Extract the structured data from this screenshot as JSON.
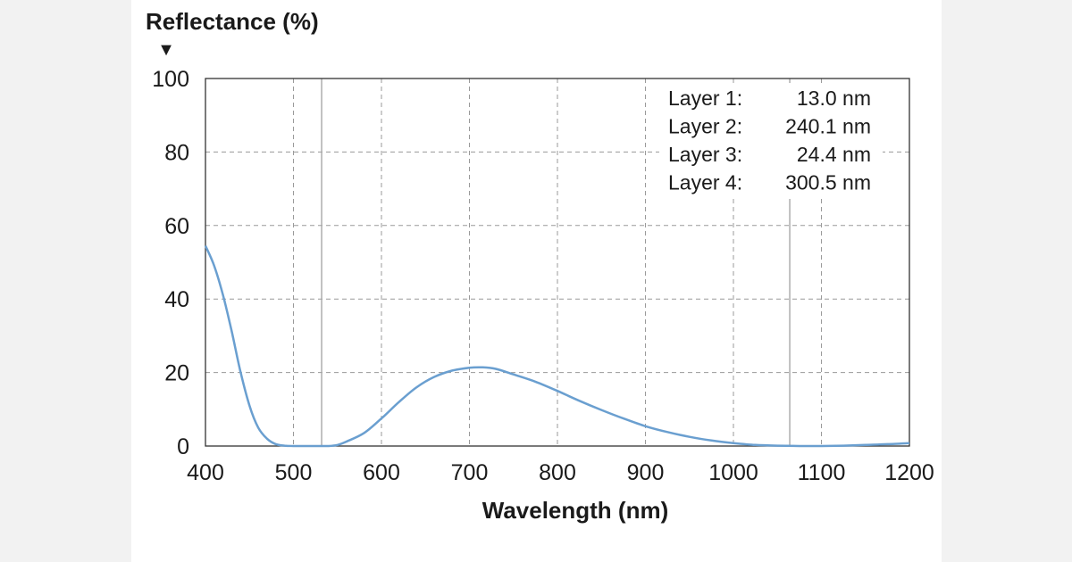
{
  "chart_data": {
    "type": "line",
    "ylabel": "Reflectance (%)",
    "ylabel_marker": "▼",
    "xlabel": "Wavelength (nm)",
    "xlim": [
      400,
      1200
    ],
    "ylim": [
      0,
      100
    ],
    "x_ticks": [
      "400",
      "500",
      "600",
      "700",
      "800",
      "900",
      "1000",
      "1100",
      "1200"
    ],
    "y_ticks": [
      "0",
      "20",
      "40",
      "60",
      "80",
      "100"
    ],
    "grid": true,
    "reference_lines_x": [
      532,
      1064
    ],
    "line_color": "#6a9fd0",
    "series": [
      {
        "x": [
          400,
          410,
          420,
          430,
          440,
          450,
          460,
          470,
          480,
          490,
          500,
          510,
          520,
          530,
          540,
          550,
          560,
          580,
          600,
          620,
          640,
          660,
          680,
          700,
          715,
          730,
          750,
          775,
          800,
          825,
          850,
          875,
          900,
          925,
          950,
          975,
          1000,
          1025,
          1050,
          1075,
          1100,
          1125,
          1150,
          1175,
          1200
        ],
        "y": [
          54.5,
          49,
          41,
          31,
          20,
          11,
          5,
          2,
          0.5,
          0.1,
          0,
          0,
          0,
          0,
          0,
          0.3,
          1.2,
          3.5,
          7.5,
          12,
          16,
          18.8,
          20.5,
          21.3,
          21.4,
          21,
          19.5,
          17.5,
          15,
          12.3,
          9.8,
          7.5,
          5.4,
          3.8,
          2.5,
          1.5,
          0.8,
          0.3,
          0.1,
          0,
          0,
          0.1,
          0.3,
          0.5,
          0.8
        ]
      }
    ],
    "annotations": [
      {
        "label": "Layer 1:",
        "value": "13.0 nm"
      },
      {
        "label": "Layer 2:",
        "value": "240.1 nm"
      },
      {
        "label": "Layer 3:",
        "value": "24.4 nm"
      },
      {
        "label": "Layer 4:",
        "value": "300.5 nm"
      }
    ],
    "legend_position": "top-right"
  }
}
